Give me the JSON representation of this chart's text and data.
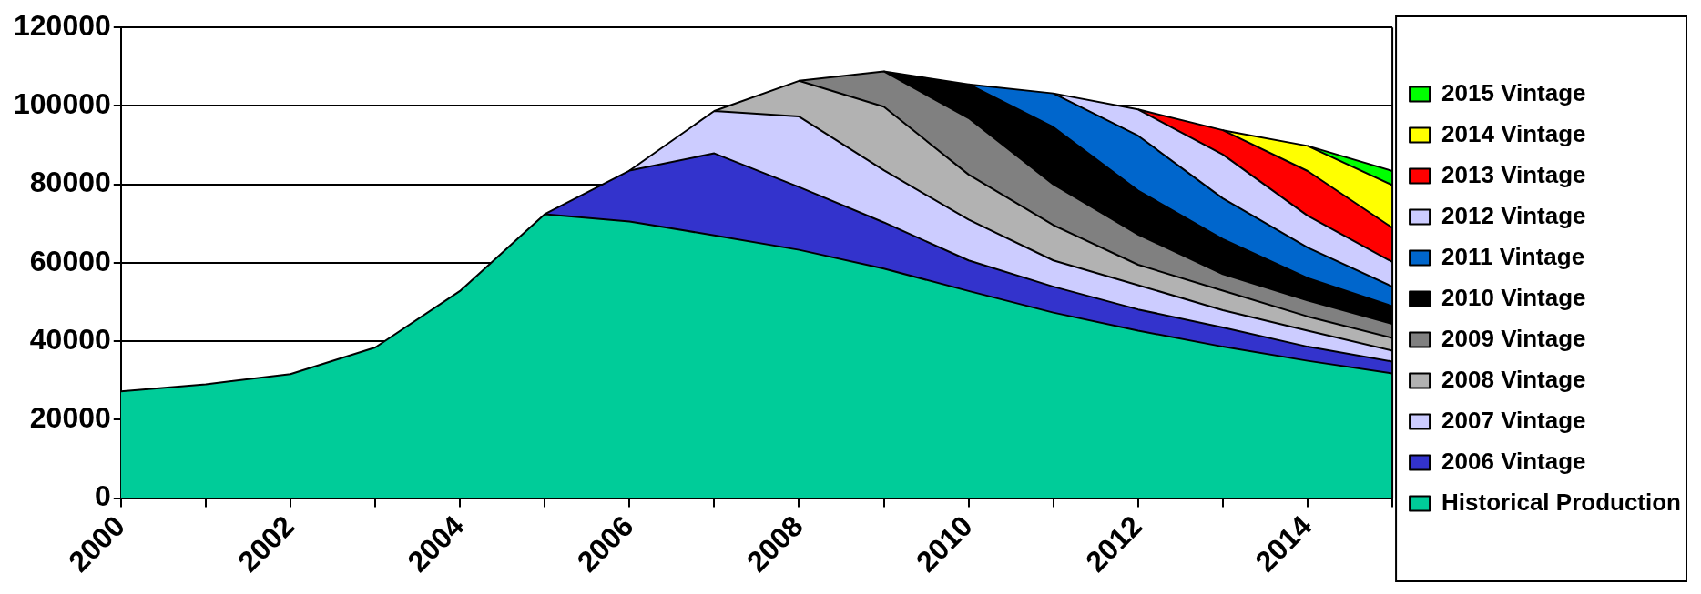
{
  "chart_data": {
    "type": "area",
    "stacked": true,
    "grid": "y",
    "legend": "right",
    "categories": [
      "2000",
      null,
      "2002",
      null,
      "2004",
      null,
      "2006",
      null,
      "2008",
      null,
      "2010",
      null,
      "2012",
      null,
      "2014",
      null
    ],
    "ylim": [
      0,
      120000
    ],
    "yticks": [
      0,
      20000,
      40000,
      60000,
      80000,
      100000,
      120000
    ],
    "series": [
      {
        "name": "Historical Production",
        "color": "#00cc99",
        "values": [
          27200,
          29000,
          31600,
          38400,
          52800,
          72400,
          70500,
          67000,
          63300,
          58500,
          52800,
          47300,
          42700,
          38600,
          35000,
          31800
        ]
      },
      {
        "name": "2006 Vintage",
        "color": "#3333cc",
        "values": [
          null,
          null,
          null,
          null,
          null,
          0,
          13000,
          20900,
          16000,
          11800,
          7800,
          6600,
          5400,
          4900,
          3600,
          3000
        ]
      },
      {
        "name": "2007 Vintage",
        "color": "#ccccff",
        "values": [
          null,
          null,
          null,
          null,
          null,
          null,
          0,
          10800,
          18000,
          13300,
          10400,
          6700,
          6200,
          4400,
          4100,
          2800
        ]
      },
      {
        "name": "2008 Vintage",
        "color": "#b2b2b2",
        "values": [
          null,
          null,
          null,
          null,
          null,
          null,
          null,
          0,
          9100,
          16200,
          11500,
          9000,
          5200,
          5000,
          3600,
          3200
        ]
      },
      {
        "name": "2009 Vintage",
        "color": "#808080",
        "values": [
          null,
          null,
          null,
          null,
          null,
          null,
          null,
          null,
          0,
          9000,
          14400,
          10400,
          7700,
          4200,
          4100,
          3600
        ]
      },
      {
        "name": "2010 Vintage",
        "color": "#000000",
        "values": [
          null,
          null,
          null,
          null,
          null,
          null,
          null,
          null,
          null,
          0,
          8600,
          14600,
          11200,
          8900,
          5700,
          4500
        ]
      },
      {
        "name": "2011 Vintage",
        "color": "#0066cc",
        "values": [
          null,
          null,
          null,
          null,
          null,
          null,
          null,
          null,
          null,
          null,
          0,
          8600,
          14000,
          10400,
          7800,
          5000
        ]
      },
      {
        "name": "2012 Vintage",
        "color": "#ccccff",
        "values": [
          null,
          null,
          null,
          null,
          null,
          null,
          null,
          null,
          null,
          null,
          null,
          0,
          6700,
          11200,
          8100,
          6300
        ]
      },
      {
        "name": "2013 Vintage",
        "color": "#ff0000",
        "values": [
          null,
          null,
          null,
          null,
          null,
          null,
          null,
          null,
          null,
          null,
          null,
          null,
          0,
          6200,
          11400,
          8700
        ]
      },
      {
        "name": "2014 Vintage",
        "color": "#ffff00",
        "values": [
          null,
          null,
          null,
          null,
          null,
          null,
          null,
          null,
          null,
          null,
          null,
          null,
          null,
          0,
          6400,
          10900
        ]
      },
      {
        "name": "2015 Vintage",
        "color": "#00ff00",
        "values": [
          null,
          null,
          null,
          null,
          null,
          null,
          null,
          null,
          null,
          null,
          null,
          null,
          null,
          null,
          0,
          3600
        ]
      }
    ]
  }
}
